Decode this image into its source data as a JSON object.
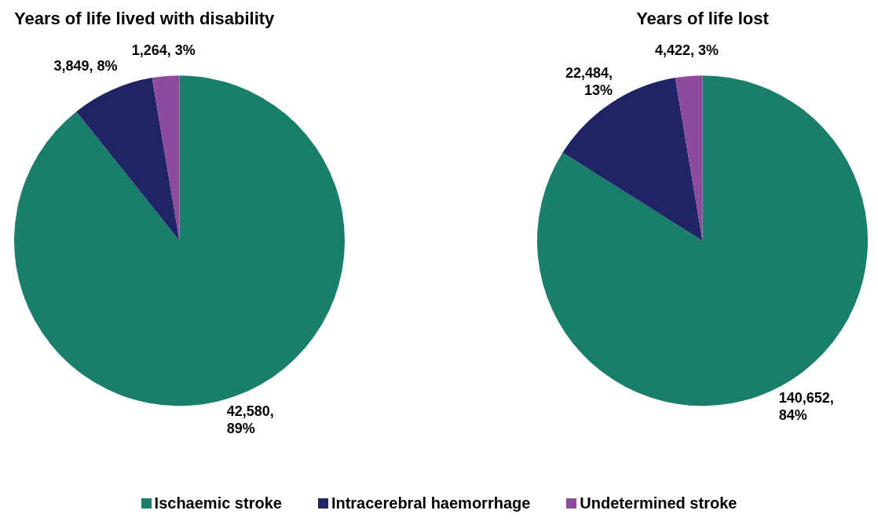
{
  "chart_data": [
    {
      "type": "pie",
      "title": "Years of life lived with disability",
      "categories": [
        "Ischaemic stroke",
        "Intracerebral haemorrhage",
        "Undetermined stroke"
      ],
      "values": [
        42580,
        3849,
        1264
      ],
      "colors": [
        "#1a7f6a",
        "#1f2466",
        "#8e4a9c"
      ],
      "value_labels": [
        "42,580, 89%",
        "3,849, 8%",
        "1,264, 3%"
      ],
      "legend": "bottom"
    },
    {
      "type": "pie",
      "title": "Years of life lost",
      "categories": [
        null,
        null,
        null
      ],
      "values": [
        140652,
        22484,
        4422
      ],
      "colors": [
        "#1a7f6a",
        "#1f2466",
        "#8e4a9c"
      ],
      "value_labels": [
        "140,652, 84%",
        "22,484, 13%",
        "4,422, 3%"
      ]
    }
  ]
}
